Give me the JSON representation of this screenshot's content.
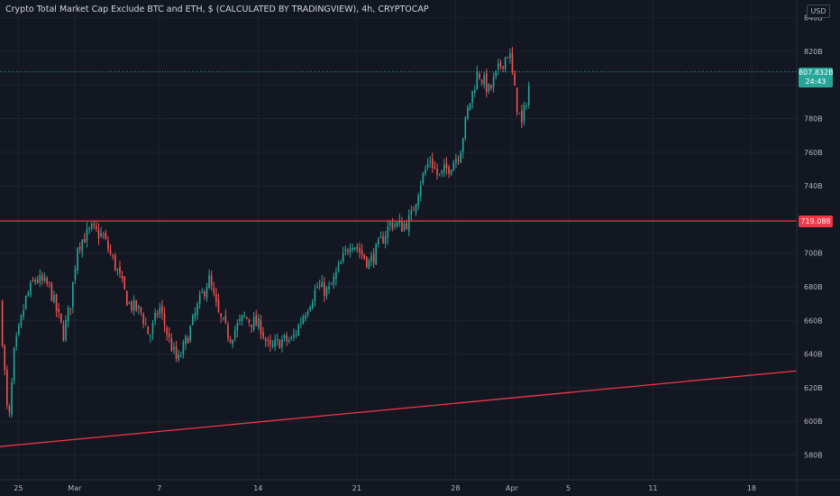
{
  "header": {
    "title": "Crypto Total Market Cap Exclude BTC and ETH, $ (CALCULATED BY TRADINGVIEW), 4h, CRYPTOCAP"
  },
  "currency_button": "USD",
  "last_price": {
    "value": "807.832B",
    "countdown": "24:43"
  },
  "horizontal_level": {
    "label": "719.088"
  },
  "colors": {
    "background": "#131722",
    "up": "#26a69a",
    "down": "#ef5350",
    "grid": "#1e222d",
    "drawing": "#f23645"
  },
  "chart_data": {
    "type": "candlestick",
    "title": "Crypto Total Market Cap Exclude BTC and ETH, $ (CALCULATED BY TRADINGVIEW), 4h, CRYPTOCAP",
    "unit": "B",
    "ylim": [
      570,
      848
    ],
    "y_ticks": [
      {
        "v": 840,
        "label": "840B"
      },
      {
        "v": 820,
        "label": "820B"
      },
      {
        "v": 800,
        "label": "800B"
      },
      {
        "v": 780,
        "label": "780B"
      },
      {
        "v": 760,
        "label": "760B"
      },
      {
        "v": 740,
        "label": "740B"
      },
      {
        "v": 720,
        "label": "720B"
      },
      {
        "v": 700,
        "label": "700B"
      },
      {
        "v": 680,
        "label": "680B"
      },
      {
        "v": 660,
        "label": "660B"
      },
      {
        "v": 640,
        "label": "640B"
      },
      {
        "v": 620,
        "label": "620B"
      },
      {
        "v": 600,
        "label": "600B"
      },
      {
        "v": 580,
        "label": "580B"
      }
    ],
    "x_ticks": [
      {
        "day": -4,
        "label": "25"
      },
      {
        "day": 0,
        "label": "Mar"
      },
      {
        "day": 6,
        "label": "7"
      },
      {
        "day": 13,
        "label": "14"
      },
      {
        "day": 20,
        "label": "21"
      },
      {
        "day": 27,
        "label": "28"
      },
      {
        "day": 31,
        "label": "Apr"
      },
      {
        "day": 35,
        "label": "5"
      },
      {
        "day": 41,
        "label": "11"
      },
      {
        "day": 48,
        "label": "18"
      }
    ],
    "x_range_days": [
      -5.3,
      51.2
    ],
    "key_points": [
      {
        "day": -5.3,
        "close": 670
      },
      {
        "day": -4.7,
        "close": 595
      },
      {
        "day": -4.3,
        "close": 640
      },
      {
        "day": -3.5,
        "close": 672
      },
      {
        "day": -2.8,
        "close": 685
      },
      {
        "day": -1.8,
        "close": 680
      },
      {
        "day": -0.8,
        "close": 652
      },
      {
        "day": -0.3,
        "close": 670
      },
      {
        "day": 0.2,
        "close": 705
      },
      {
        "day": 1.2,
        "close": 714
      },
      {
        "day": 2.0,
        "close": 710
      },
      {
        "day": 3.0,
        "close": 690
      },
      {
        "day": 3.8,
        "close": 670
      },
      {
        "day": 4.7,
        "close": 665
      },
      {
        "day": 5.3,
        "close": 650
      },
      {
        "day": 6.0,
        "close": 668
      },
      {
        "day": 6.7,
        "close": 648
      },
      {
        "day": 7.3,
        "close": 635
      },
      {
        "day": 8.0,
        "close": 650
      },
      {
        "day": 8.8,
        "close": 670
      },
      {
        "day": 9.5,
        "close": 685
      },
      {
        "day": 10.2,
        "close": 663
      },
      {
        "day": 11.0,
        "close": 650
      },
      {
        "day": 12.0,
        "close": 662
      },
      {
        "day": 13.2,
        "close": 656
      },
      {
        "day": 13.8,
        "close": 642
      },
      {
        "day": 14.6,
        "close": 648
      },
      {
        "day": 15.4,
        "close": 648
      },
      {
        "day": 16.3,
        "close": 665
      },
      {
        "day": 17.2,
        "close": 680
      },
      {
        "day": 18.0,
        "close": 677
      },
      {
        "day": 18.8,
        "close": 692
      },
      {
        "day": 19.6,
        "close": 708
      },
      {
        "day": 20.3,
        "close": 700
      },
      {
        "day": 20.9,
        "close": 694
      },
      {
        "day": 21.6,
        "close": 705
      },
      {
        "day": 22.4,
        "close": 718
      },
      {
        "day": 23.2,
        "close": 716
      },
      {
        "day": 23.8,
        "close": 720
      },
      {
        "day": 24.5,
        "close": 742
      },
      {
        "day": 25.2,
        "close": 756
      },
      {
        "day": 25.8,
        "close": 745
      },
      {
        "day": 26.6,
        "close": 752
      },
      {
        "day": 27.3,
        "close": 760
      },
      {
        "day": 27.9,
        "close": 786
      },
      {
        "day": 28.6,
        "close": 808
      },
      {
        "day": 29.4,
        "close": 796
      },
      {
        "day": 30.2,
        "close": 812
      },
      {
        "day": 30.8,
        "close": 820
      },
      {
        "day": 31.3,
        "close": 790
      },
      {
        "day": 31.7,
        "close": 776
      },
      {
        "day": 32.3,
        "close": 804
      }
    ],
    "horizontal_line": 719.088,
    "trendline": [
      {
        "day": -5.3,
        "value": 585
      },
      {
        "day": 51.2,
        "value": 630
      }
    ],
    "last_price_line": 807.832
  }
}
